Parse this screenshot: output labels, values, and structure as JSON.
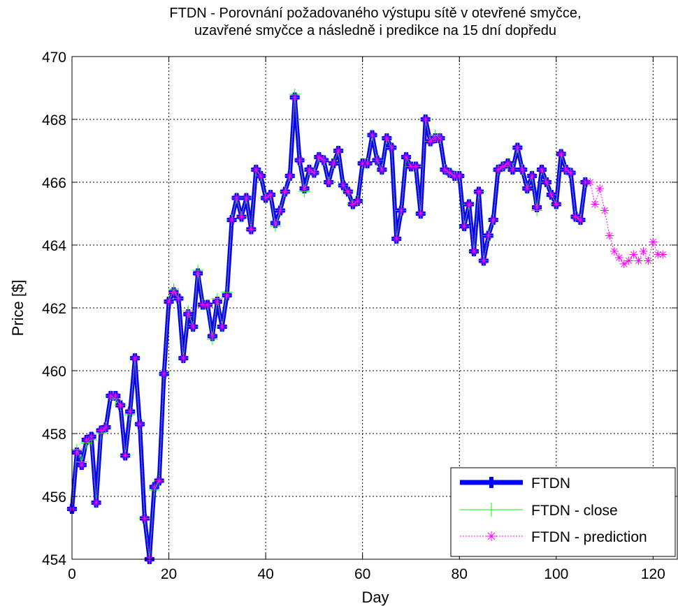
{
  "colors": {
    "ftdn": "#0000ff",
    "close": "#00ff00",
    "prediction": "#ff00ff",
    "grid": "#000000",
    "background": "#ffffff"
  },
  "chart_data": {
    "type": "line",
    "title_line1": "FTDN - Porovnání požadovaného výstupu sítě v otevřené smyčce,",
    "title_line2": "uzavřené smyčce a následně i predikce na 15 dní dopředu",
    "xlabel": "Day",
    "ylabel": "Price [$]",
    "xlim": [
      0,
      125
    ],
    "ylim": [
      454,
      470
    ],
    "xticks": [
      0,
      20,
      40,
      60,
      80,
      100,
      120
    ],
    "yticks": [
      454,
      456,
      458,
      460,
      462,
      464,
      466,
      468,
      470
    ],
    "xtick_labels": [
      "0",
      "20",
      "40",
      "60",
      "80",
      "100",
      "120"
    ],
    "ytick_labels": [
      "454",
      "456",
      "458",
      "460",
      "462",
      "464",
      "466",
      "468",
      "470"
    ],
    "grid": true,
    "legend_position": "bottom-right",
    "series": [
      {
        "name": "FTDN",
        "style": "thick-solid-plus",
        "x_start": 0,
        "values": [
          455.6,
          457.4,
          457.0,
          457.8,
          457.9,
          455.8,
          458.1,
          458.2,
          459.2,
          459.2,
          458.9,
          457.3,
          458.7,
          460.4,
          458.3,
          455.3,
          454.0,
          456.3,
          456.5,
          459.9,
          462.2,
          462.5,
          462.3,
          460.4,
          461.8,
          461.4,
          463.1,
          462.1,
          462.1,
          461.1,
          462.2,
          461.4,
          462.4,
          464.8,
          465.5,
          464.9,
          465.5,
          464.5,
          466.4,
          466.2,
          465.5,
          465.6,
          464.7,
          465.1,
          465.7,
          466.2,
          468.7,
          466.7,
          465.8,
          466.4,
          466.3,
          466.8,
          466.7,
          466.0,
          466.6,
          467.0,
          465.9,
          465.7,
          465.3,
          465.4,
          466.6,
          466.6,
          467.5,
          466.7,
          466.4,
          467.4,
          467.1,
          464.2,
          465.1,
          466.8,
          466.5,
          466.5,
          465.0,
          468.0,
          467.3,
          467.4,
          467.4,
          466.4,
          466.3,
          466.2,
          466.2,
          464.6,
          465.3,
          463.8,
          465.7,
          463.5,
          464.3,
          464.8,
          466.4,
          466.5,
          466.6,
          466.4,
          467.1,
          466.4,
          465.8,
          466.2,
          465.2,
          466.4,
          466.0,
          465.6,
          465.3,
          466.9,
          466.4,
          466.3,
          464.9,
          464.8,
          466.0
        ]
      },
      {
        "name": "FTDN - close",
        "style": "thin-solid-plus",
        "x_start": 0,
        "values": [
          455.6,
          457.5,
          457.1,
          457.7,
          457.8,
          455.8,
          458.0,
          458.2,
          459.2,
          459.1,
          458.9,
          457.3,
          458.6,
          460.4,
          458.3,
          455.3,
          454.0,
          456.2,
          456.5,
          459.9,
          462.2,
          462.6,
          462.3,
          460.4,
          461.9,
          461.4,
          463.2,
          462.1,
          462.1,
          461.0,
          462.3,
          461.4,
          462.5,
          464.8,
          465.5,
          464.9,
          465.5,
          464.5,
          466.4,
          466.2,
          465.5,
          465.6,
          464.6,
          465.1,
          465.7,
          466.2,
          468.8,
          466.7,
          465.7,
          466.4,
          466.3,
          466.8,
          466.7,
          466.0,
          466.6,
          467.0,
          465.9,
          465.7,
          465.3,
          465.4,
          466.6,
          466.6,
          467.5,
          466.7,
          466.4,
          467.4,
          467.1,
          464.2,
          465.1,
          466.8,
          466.5,
          466.5,
          465.0,
          468.0,
          467.3,
          467.5,
          467.4,
          466.4,
          466.3,
          466.2,
          466.2,
          464.6,
          465.3,
          463.8,
          465.7,
          463.5,
          464.3,
          464.8,
          466.4,
          466.5,
          466.6,
          466.4,
          467.1,
          466.4,
          465.8,
          466.2,
          465.1,
          466.4,
          466.0,
          465.6,
          465.3,
          466.9,
          466.4,
          466.3,
          464.9,
          464.8,
          466.0
        ]
      },
      {
        "name": "FTDN - prediction",
        "style": "dotted-star",
        "x_start": 0,
        "values": [
          455.6,
          457.4,
          457.0,
          457.8,
          457.9,
          455.8,
          458.1,
          458.2,
          459.2,
          459.2,
          458.9,
          457.3,
          458.7,
          460.4,
          458.3,
          455.3,
          454.0,
          456.3,
          456.5,
          459.9,
          462.2,
          462.5,
          462.3,
          460.4,
          461.8,
          461.4,
          463.1,
          462.1,
          462.1,
          461.1,
          462.2,
          461.4,
          462.4,
          464.8,
          465.5,
          464.9,
          465.5,
          464.5,
          466.4,
          466.2,
          465.5,
          465.6,
          464.7,
          465.1,
          465.7,
          466.2,
          468.7,
          466.7,
          465.8,
          466.4,
          466.3,
          466.8,
          466.7,
          466.0,
          466.6,
          467.0,
          465.9,
          465.7,
          465.3,
          465.4,
          466.6,
          466.6,
          467.5,
          466.7,
          466.4,
          467.4,
          467.1,
          464.2,
          465.1,
          466.8,
          466.5,
          466.5,
          465.0,
          468.0,
          467.3,
          467.4,
          467.4,
          466.4,
          466.3,
          466.2,
          466.2,
          464.6,
          465.3,
          463.8,
          465.7,
          463.5,
          464.3,
          464.8,
          466.4,
          466.5,
          466.6,
          466.4,
          467.1,
          466.4,
          465.8,
          466.2,
          465.2,
          466.4,
          466.0,
          465.6,
          465.3,
          466.9,
          466.4,
          466.3,
          464.9,
          464.8,
          466.0,
          466.0,
          465.3,
          465.8,
          465.1,
          464.3,
          463.8,
          463.6,
          463.4,
          463.5,
          463.7,
          463.5,
          463.8,
          463.5,
          464.1,
          463.7,
          463.7
        ]
      }
    ]
  }
}
